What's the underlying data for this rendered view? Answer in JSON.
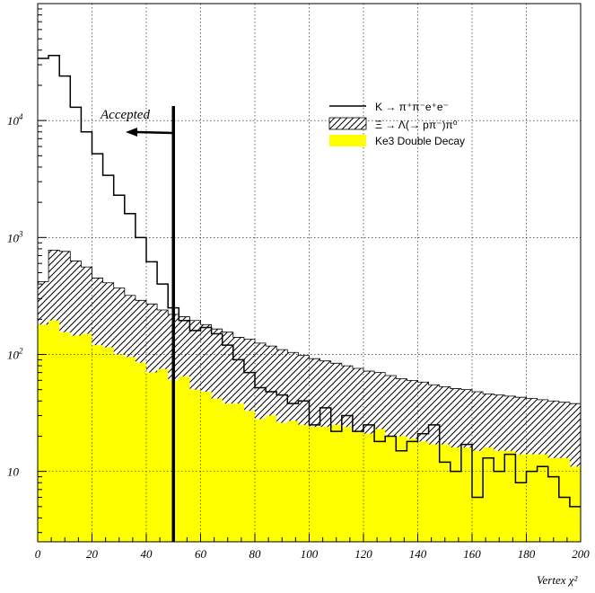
{
  "chart_data": {
    "type": "histogram",
    "xlabel": "Vertex χ²",
    "ylabel": "",
    "xlim": [
      0,
      200
    ],
    "ylim": [
      2.5,
      100000
    ],
    "y_scale": "log",
    "grid": true,
    "bin_width": 4,
    "x_ticks": [
      "0",
      "20",
      "40",
      "60",
      "80",
      "100",
      "120",
      "140",
      "160",
      "180",
      "200"
    ],
    "y_ticks": [
      {
        "value": 10,
        "label": "10",
        "exp": ""
      },
      {
        "value": 100,
        "label": "10",
        "exp": "2"
      },
      {
        "value": 1000,
        "label": "10",
        "exp": "3"
      },
      {
        "value": 10000,
        "label": "10",
        "exp": "4"
      }
    ],
    "annotation": {
      "text": "Accepted",
      "cut_x": 50
    },
    "legend": {
      "placement": "top-right",
      "kl": "K  → π⁺π⁻e⁺e⁻",
      "xi": "Ξ → Λ(→ pπ⁻)π⁰",
      "ke3": "Ke3 Double Decay"
    },
    "series": [
      {
        "key": "ke3",
        "style": "yellow filled",
        "color": "#ffff00",
        "values": [
          180,
          195,
          155,
          145,
          150,
          120,
          115,
          100,
          95,
          85,
          70,
          75,
          60,
          65,
          50,
          48,
          42,
          38,
          38,
          33,
          28,
          30,
          26,
          27,
          25,
          24,
          24,
          25,
          24,
          22,
          21,
          23,
          20,
          20,
          19,
          18,
          17,
          17,
          16,
          16,
          15,
          16,
          15,
          15,
          14,
          14,
          14,
          13,
          13,
          11
        ]
      },
      {
        "key": "xi",
        "style": "hatched",
        "color": "#000000",
        "values": [
          420,
          780,
          760,
          630,
          560,
          450,
          410,
          370,
          320,
          290,
          270,
          240,
          220,
          210,
          195,
          180,
          165,
          155,
          140,
          135,
          125,
          118,
          110,
          104,
          98,
          92,
          88,
          84,
          80,
          76,
          72,
          70,
          66,
          62,
          60,
          58,
          55,
          53,
          51,
          50,
          48,
          46,
          45,
          44,
          43,
          42,
          41,
          40,
          39,
          38
        ]
      },
      {
        "key": "kl",
        "style": "outline",
        "color": "#000000",
        "values": [
          34000,
          36000,
          24000,
          13000,
          8000,
          5200,
          3400,
          2300,
          1600,
          1000,
          620,
          400,
          250,
          195,
          160,
          170,
          150,
          120,
          90,
          70,
          52,
          48,
          45,
          38,
          40,
          25,
          35,
          22,
          30,
          22,
          25,
          18,
          20,
          15,
          18,
          21,
          25,
          12,
          10,
          17,
          6,
          13,
          10,
          14,
          8,
          10,
          11,
          9,
          6,
          5
        ]
      }
    ]
  }
}
